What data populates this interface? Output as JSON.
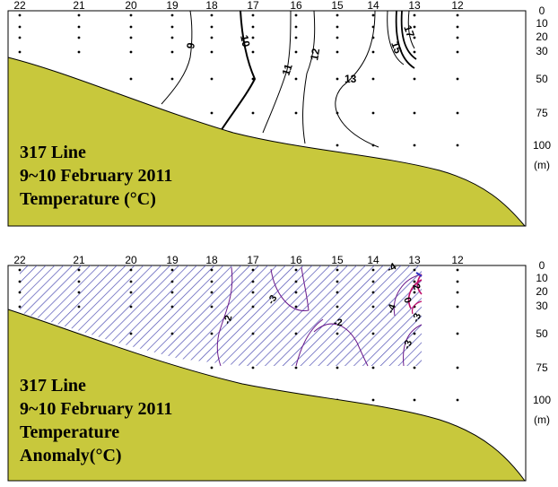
{
  "chart_data": [
    {
      "type": "contour",
      "labels": [
        "317 Line",
        "9~10 February 2011",
        "Temperature (°C)"
      ],
      "stations": [
        "22",
        "21",
        "20",
        "19",
        "18",
        "17",
        "16",
        "15",
        "14",
        "13",
        "12"
      ],
      "depth_ticks": [
        "0",
        "10",
        "20",
        "30",
        "50",
        "75",
        "100",
        "(m)"
      ],
      "contour_levels": [
        9,
        10,
        11,
        12,
        13,
        15,
        17
      ],
      "contour_labels": [
        "9",
        "10",
        "11",
        "12",
        "13",
        "15",
        "17"
      ],
      "colors": {
        "seabed": "#c8c83c",
        "contour": "#000000"
      }
    },
    {
      "type": "contour",
      "labels": [
        "317 Line",
        "9~10 February 2011",
        "Temperature",
        "Anomaly(°C)"
      ],
      "stations": [
        "22",
        "21",
        "20",
        "19",
        "18",
        "17",
        "16",
        "15",
        "14",
        "13",
        "12"
      ],
      "depth_ticks": [
        "0",
        "10",
        "20",
        "30",
        "50",
        "75",
        "100",
        "(m)"
      ],
      "contour_levels": [
        -4,
        -3,
        -2,
        0,
        2
      ],
      "contour_labels": [
        "-4",
        "-3",
        "-2",
        "-2",
        "-3",
        "-4",
        "0",
        "2",
        "-3"
      ],
      "negative_region_hatched": true,
      "colors": {
        "seabed": "#c8c83c",
        "hatch": "#5050b4",
        "contour_neg": "#6a1a8c",
        "contour_pos": "#c0106a"
      }
    }
  ]
}
